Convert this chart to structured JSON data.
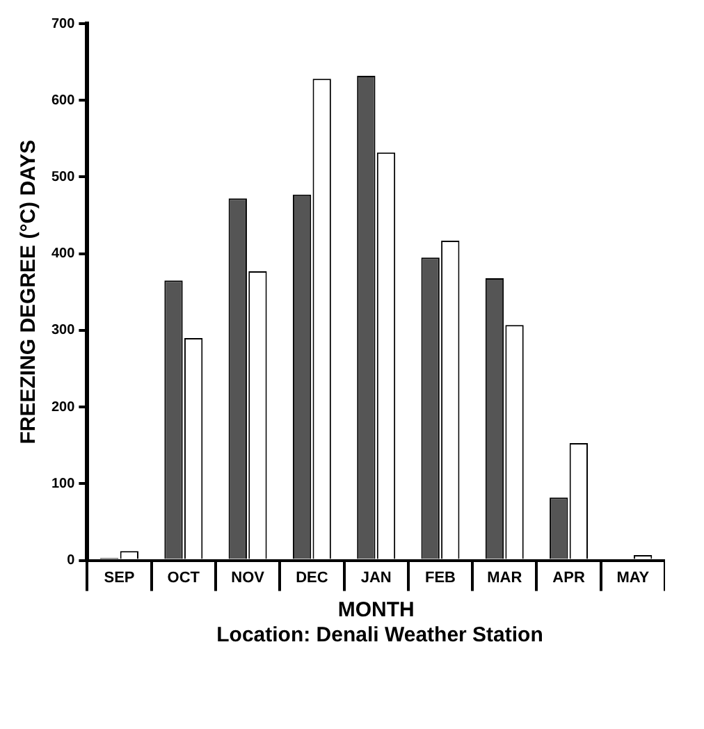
{
  "chart_data": {
    "type": "bar",
    "xlabel": "MONTH",
    "ylabel": "FREEZING DEGREE (°C) DAYS",
    "categories": [
      "SEP",
      "OCT",
      "NOV",
      "DEC",
      "JAN",
      "FEB",
      "MAR",
      "APR",
      "MAY"
    ],
    "series": [
      {
        "color": "#555555",
        "values": [
          3,
          365,
          472,
          477,
          632,
          395,
          368,
          82,
          0
        ]
      },
      {
        "color": "#ffffff",
        "values": [
          12,
          290,
          377,
          628,
          532,
          417,
          307,
          153,
          7
        ]
      }
    ],
    "ylim": [
      0,
      700
    ],
    "yticks": [
      0,
      100,
      200,
      300,
      400,
      500,
      600,
      700
    ],
    "grid": false,
    "legend": false,
    "annotations": [
      "Location: Denali Weather Station"
    ]
  }
}
